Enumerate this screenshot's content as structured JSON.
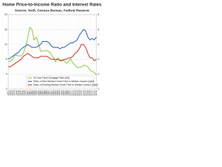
{
  "chart_data": {
    "type": "line",
    "title": "Home Price-to-Income Ratio and Interest Rates",
    "subtitle": "Source: NAR, Census Bureau, Federal Reserve",
    "categories": [
      "1971",
      "1972",
      "1973",
      "1974",
      "1975",
      "1976",
      "1977",
      "1978",
      "1979",
      "1980",
      "1981",
      "1982",
      "1983",
      "1984",
      "1985",
      "1986",
      "1987",
      "1988",
      "1989",
      "1990",
      "1991",
      "1992",
      "1993",
      "1994",
      "1995",
      "1996",
      "1997",
      "1998",
      "1999",
      "2000",
      "2001",
      "2002",
      "2003",
      "2004",
      "2005",
      "2006",
      "2007",
      "2008",
      "2009",
      "2010",
      "2011",
      "2012"
    ],
    "series": [
      {
        "name": "30-Year Fixed Mortgage Rate (left)",
        "color": "#8fc74a",
        "axis": "y",
        "values": [
          7.5,
          7.4,
          8.0,
          9.2,
          9.0,
          8.9,
          8.9,
          9.6,
          11.2,
          13.7,
          16.6,
          16.0,
          13.2,
          13.9,
          12.4,
          10.2,
          10.2,
          10.3,
          10.3,
          10.1,
          9.3,
          8.4,
          7.3,
          8.4,
          7.9,
          7.8,
          7.6,
          6.9,
          7.4,
          8.1,
          7.0,
          6.5,
          5.8,
          5.8,
          5.9,
          6.4,
          6.3,
          6.0,
          5.0,
          4.7,
          4.5,
          3.7
        ]
      },
      {
        "name": "Ratio of New Median Home Price to Median Income (right)",
        "color": "#2f5fb0",
        "axis": "y2",
        "values": [
          3.0,
          3.1,
          3.2,
          3.3,
          3.4,
          3.5,
          3.7,
          3.8,
          3.9,
          4.0,
          3.9,
          3.8,
          3.8,
          3.8,
          3.9,
          4.0,
          4.2,
          4.2,
          4.2,
          4.1,
          3.9,
          3.8,
          3.8,
          3.8,
          3.7,
          3.8,
          3.8,
          3.9,
          4.0,
          4.1,
          4.1,
          4.2,
          4.3,
          4.6,
          4.8,
          5.0,
          4.9,
          4.5,
          4.3,
          4.4,
          4.3,
          4.5
        ]
      },
      {
        "name": "Ratio of Existing Median Home Price to Median Income (right)",
        "color": "#c0392b",
        "axis": "y2",
        "values": [
          2.5,
          2.5,
          2.6,
          2.7,
          2.8,
          2.9,
          3.0,
          3.2,
          3.3,
          3.4,
          3.3,
          3.2,
          3.1,
          3.1,
          3.1,
          3.2,
          3.2,
          3.2,
          3.2,
          3.1,
          3.0,
          3.0,
          3.0,
          3.0,
          2.9,
          2.9,
          3.0,
          3.0,
          3.1,
          3.1,
          3.2,
          3.4,
          3.5,
          3.7,
          4.0,
          4.0,
          3.8,
          3.4,
          3.1,
          3.1,
          2.9,
          3.0
        ]
      }
    ],
    "ylim": [
      0,
      20
    ],
    "yticks": [
      0,
      4,
      8,
      12,
      16,
      20
    ],
    "y2lim": [
      1,
      6
    ],
    "y2ticks": [
      1,
      2,
      3,
      4,
      5,
      6
    ],
    "grid": true
  }
}
